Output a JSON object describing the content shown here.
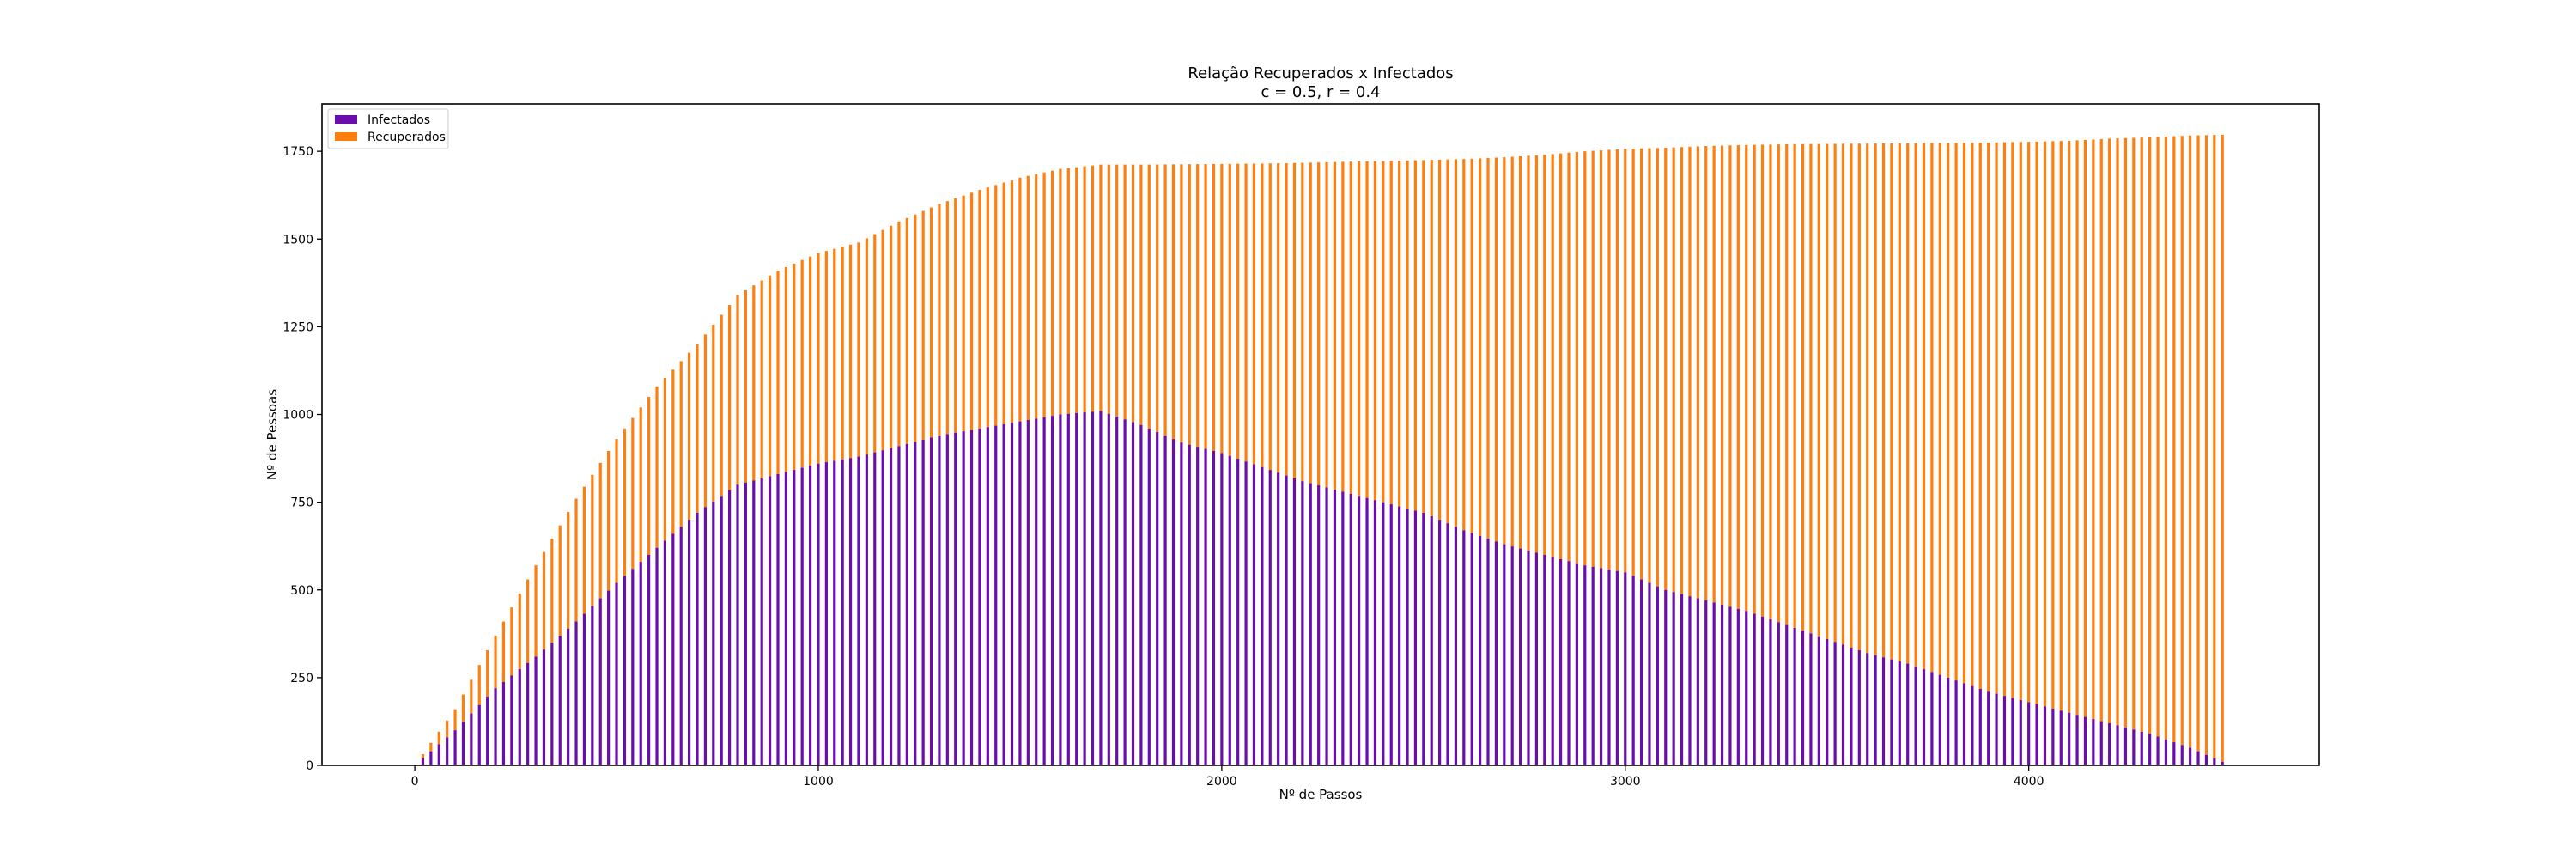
{
  "chart_data": {
    "type": "bar",
    "stacked": true,
    "title": "Relação Recuperados x Infectados",
    "subtitle": "c = 0.5, r = 0.4",
    "xlabel": "Nº de Passos",
    "ylabel": "Nº de Pessoas",
    "xlim": [
      -230,
      4720
    ],
    "ylim": [
      0,
      1885
    ],
    "xticks": [
      0,
      1000,
      2000,
      3000,
      4000
    ],
    "yticks": [
      0,
      250,
      500,
      750,
      1000,
      1250,
      1500,
      1750
    ],
    "grid": false,
    "legend_position": "top-left",
    "bar_step": 20,
    "x_range": [
      0,
      4480
    ],
    "series": [
      {
        "name": "Infectados",
        "color": "#6a0dad",
        "anchors": [
          [
            0,
            0
          ],
          [
            100,
            100
          ],
          [
            200,
            220
          ],
          [
            300,
            310
          ],
          [
            400,
            410
          ],
          [
            500,
            520
          ],
          [
            600,
            620
          ],
          [
            700,
            720
          ],
          [
            800,
            800
          ],
          [
            900,
            830
          ],
          [
            1000,
            860
          ],
          [
            1100,
            880
          ],
          [
            1200,
            910
          ],
          [
            1300,
            940
          ],
          [
            1400,
            960
          ],
          [
            1500,
            980
          ],
          [
            1600,
            1000
          ],
          [
            1700,
            1010
          ],
          [
            1800,
            970
          ],
          [
            1900,
            920
          ],
          [
            2000,
            890
          ],
          [
            2100,
            850
          ],
          [
            2200,
            810
          ],
          [
            2300,
            780
          ],
          [
            2400,
            750
          ],
          [
            2500,
            720
          ],
          [
            2600,
            670
          ],
          [
            2700,
            630
          ],
          [
            2800,
            600
          ],
          [
            2900,
            570
          ],
          [
            3000,
            550
          ],
          [
            3100,
            500
          ],
          [
            3200,
            470
          ],
          [
            3300,
            440
          ],
          [
            3400,
            400
          ],
          [
            3500,
            360
          ],
          [
            3600,
            320
          ],
          [
            3700,
            290
          ],
          [
            3800,
            250
          ],
          [
            3900,
            210
          ],
          [
            4000,
            180
          ],
          [
            4100,
            150
          ],
          [
            4200,
            120
          ],
          [
            4300,
            90
          ],
          [
            4400,
            50
          ],
          [
            4480,
            10
          ]
        ]
      },
      {
        "name": "Recuperados",
        "color": "#ff7f0e",
        "total_anchors": [
          [
            0,
            0
          ],
          [
            100,
            160
          ],
          [
            200,
            370
          ],
          [
            300,
            570
          ],
          [
            400,
            760
          ],
          [
            500,
            930
          ],
          [
            600,
            1080
          ],
          [
            700,
            1200
          ],
          [
            800,
            1340
          ],
          [
            900,
            1410
          ],
          [
            1000,
            1460
          ],
          [
            1100,
            1490
          ],
          [
            1200,
            1550
          ],
          [
            1300,
            1600
          ],
          [
            1400,
            1640
          ],
          [
            1500,
            1675
          ],
          [
            1600,
            1700
          ],
          [
            1700,
            1712
          ],
          [
            1800,
            1712
          ],
          [
            1900,
            1713
          ],
          [
            2000,
            1714
          ],
          [
            2100,
            1715
          ],
          [
            2200,
            1717
          ],
          [
            2300,
            1720
          ],
          [
            2400,
            1722
          ],
          [
            2500,
            1725
          ],
          [
            2600,
            1728
          ],
          [
            2700,
            1733
          ],
          [
            2800,
            1740
          ],
          [
            2900,
            1750
          ],
          [
            3000,
            1757
          ],
          [
            3100,
            1760
          ],
          [
            3200,
            1765
          ],
          [
            3300,
            1768
          ],
          [
            3400,
            1770
          ],
          [
            3500,
            1771
          ],
          [
            3600,
            1772
          ],
          [
            3700,
            1773
          ],
          [
            3800,
            1774
          ],
          [
            3900,
            1775
          ],
          [
            4000,
            1777
          ],
          [
            4100,
            1780
          ],
          [
            4200,
            1786
          ],
          [
            4300,
            1790
          ],
          [
            4400,
            1795
          ],
          [
            4480,
            1797
          ]
        ]
      }
    ]
  }
}
